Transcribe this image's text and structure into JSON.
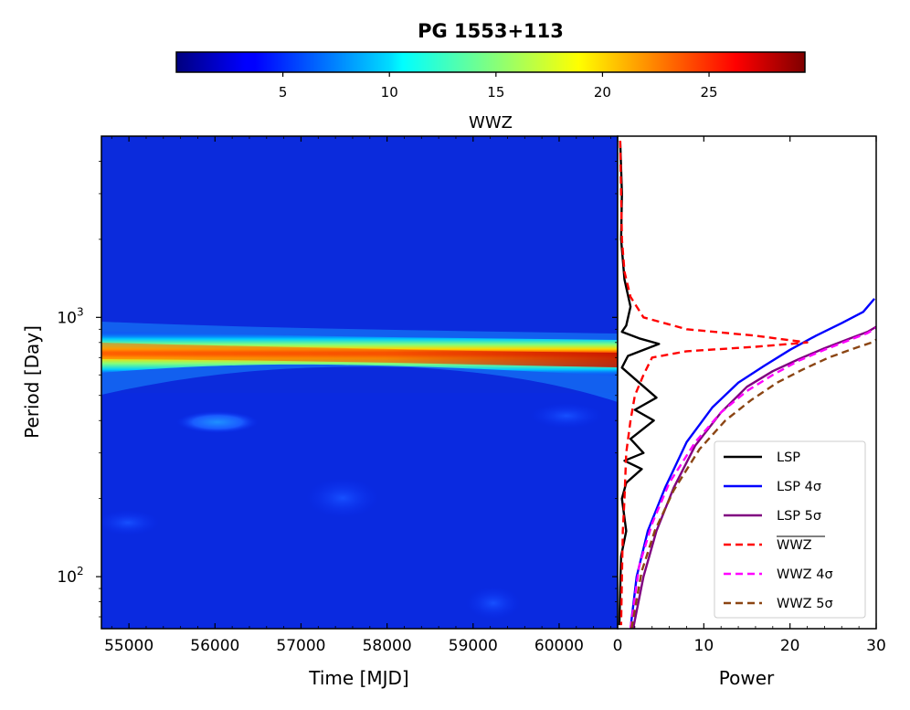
{
  "chart_data": [
    {
      "type": "heatmap",
      "title": "PG 1553+113",
      "xlabel": "Time [MJD]",
      "ylabel": "Period [Day]",
      "xlim": [
        54680,
        60680
      ],
      "ylim": [
        63,
        5000
      ],
      "yscale": "log",
      "x_ticks": [
        55000,
        56000,
        57000,
        58000,
        59000,
        60000
      ],
      "y_ticks": [
        {
          "value": 100,
          "base": "10",
          "exp": "2"
        },
        {
          "value": 1000,
          "base": "10",
          "exp": "3"
        }
      ],
      "colorbar": {
        "label": "WWZ",
        "colormap": "jet",
        "range": [
          0,
          29.5
        ],
        "ticks": [
          5,
          10,
          15,
          20,
          25
        ],
        "placement": "top"
      },
      "features": [
        {
          "time": [
            54680,
            60680
          ],
          "period": [
            800,
            780
          ],
          "wwz_peak": [
            24,
            29
          ],
          "description_hidden": true
        },
        {
          "time": [
            56000,
            56000
          ],
          "period": [
            410,
            410
          ],
          "wwz_peak": [
            6,
            6
          ],
          "description_hidden": true
        }
      ]
    },
    {
      "type": "line",
      "xlabel": "Power",
      "xlim": [
        0,
        30
      ],
      "x_ticks": [
        0,
        10,
        20,
        30
      ],
      "yscale": "log",
      "ylim": [
        63,
        5000
      ],
      "legend_placement": "lower right",
      "series": [
        {
          "name": "LSP",
          "color": "#000000",
          "style": "solid",
          "x": [
            0.3,
            0.5,
            0.4,
            0.8,
            1.5,
            1.0,
            0.5,
            2.5,
            4.8,
            3.5,
            1.2,
            0.5,
            2.5,
            4.5,
            2.0,
            4.2,
            1.5,
            3.0,
            0.8,
            2.8,
            1.0,
            0.5,
            1.0,
            0.4,
            0.3,
            0.2
          ],
          "y": [
            4800,
            3000,
            2000,
            1400,
            1100,
            930,
            880,
            830,
            790,
            760,
            710,
            640,
            560,
            490,
            440,
            400,
            340,
            300,
            280,
            260,
            230,
            200,
            150,
            120,
            90,
            65
          ]
        },
        {
          "name": "LSP 4σ",
          "color": "#0000ff",
          "style": "solid",
          "x": [
            1.5,
            2.2,
            3.5,
            5.5,
            8.0,
            11.0,
            14.0,
            17.0,
            20.0,
            23.0,
            26.0,
            28.5,
            29.8
          ],
          "y": [
            63,
            100,
            150,
            220,
            330,
            450,
            560,
            650,
            750,
            850,
            950,
            1050,
            1180
          ]
        },
        {
          "name": "LSP 5σ",
          "color": "#800080",
          "style": "solid",
          "x": [
            1.8,
            3.0,
            4.5,
            6.5,
            9.0,
            12.0,
            15.0,
            18.0,
            21.0,
            24.0,
            27.0,
            29.0,
            30.0
          ],
          "y": [
            63,
            100,
            150,
            220,
            320,
            430,
            540,
            620,
            690,
            760,
            830,
            880,
            920
          ]
        },
        {
          "name": "WWZ",
          "color": "#ff0000",
          "style": "dashed",
          "x": [
            0.3,
            0.4,
            0.5,
            0.8,
            1.5,
            3.0,
            8.0,
            16.0,
            22.0,
            16.0,
            8.0,
            4.0,
            3.0,
            2.0,
            1.5,
            1.0,
            0.8,
            0.6,
            0.5,
            0.4
          ],
          "y": [
            4800,
            3000,
            2000,
            1500,
            1200,
            1000,
            900,
            850,
            800,
            770,
            740,
            700,
            600,
            500,
            400,
            300,
            200,
            150,
            100,
            65
          ]
        },
        {
          "name": "WWZ 4σ",
          "color": "#ff00ff",
          "style": "dashed",
          "x": [
            1.5,
            2.5,
            4.0,
            6.0,
            9.0,
            12.0,
            15.0,
            18.0,
            21.0,
            24.0,
            27.0,
            29.0,
            30.0
          ],
          "y": [
            63,
            110,
            160,
            230,
            330,
            430,
            520,
            600,
            680,
            750,
            820,
            870,
            910
          ]
        },
        {
          "name": "WWZ 5σ",
          "color": "#8b4513",
          "style": "dashed",
          "x": [
            1.6,
            2.8,
            4.3,
            6.5,
            9.5,
            12.5,
            15.5,
            18.5,
            21.5,
            24.5,
            27.5,
            29.5,
            30.0
          ],
          "y": [
            63,
            105,
            150,
            215,
            310,
            400,
            480,
            560,
            630,
            700,
            760,
            800,
            820
          ]
        }
      ]
    }
  ],
  "legend": {
    "lsp": "LSP",
    "lsp4": "LSP 4σ",
    "lsp5": "LSP 5σ",
    "wwzbar": "WWZ",
    "wwz4": "WWZ 4σ",
    "wwz5": "WWZ 5σ"
  }
}
